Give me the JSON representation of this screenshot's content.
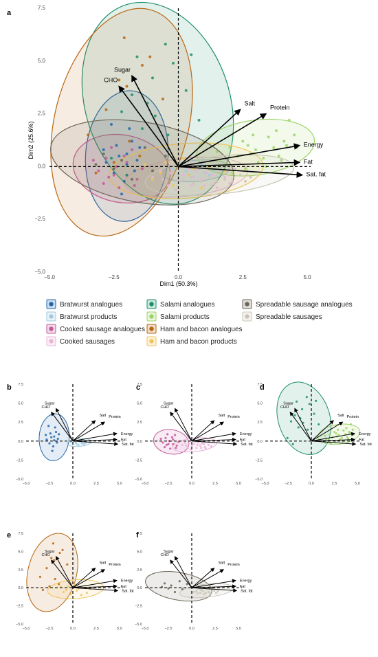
{
  "figure_labels": {
    "a": "a",
    "b": "b",
    "c": "c",
    "d": "d",
    "e": "e",
    "f": "f"
  },
  "colors": {
    "bratwurst_analogues": "#2166ac",
    "bratwurst_products": "#9ecae1",
    "cooked_sausage_analogues": "#c2579a",
    "cooked_sausages": "#e8b4d8",
    "salami_analogues": "#1b8f6a",
    "salami_products": "#9cd366",
    "ham_bacon_analogues": "#b8650f",
    "ham_bacon_products": "#f0c65a",
    "spreadable_analogues": "#6b6556",
    "spreadable_sausages": "#c9c5b5",
    "axis_line": "#000000"
  },
  "legend": [
    {
      "key": "bratwurst_analogues",
      "label": "Bratwurst analogues"
    },
    {
      "key": "bratwurst_products",
      "label": "Bratwurst products"
    },
    {
      "key": "cooked_sausage_analogues",
      "label": "Cooked sausage analogues"
    },
    {
      "key": "cooked_sausages",
      "label": "Cooked sausages"
    },
    {
      "key": "salami_analogues",
      "label": "Salami analogues"
    },
    {
      "key": "salami_products",
      "label": "Salami products"
    },
    {
      "key": "ham_bacon_analogues",
      "label": "Ham and bacon analogues"
    },
    {
      "key": "ham_bacon_products",
      "label": "Ham and bacon products"
    },
    {
      "key": "spreadable_analogues",
      "label": "Spreadable sausage analogues"
    },
    {
      "key": "spreadable_sausages",
      "label": "Spreadable sausages"
    }
  ],
  "chart_data": {
    "type": "scatter",
    "subtype": "PCA biplot",
    "xlabel": "Dim1 (50.3%)",
    "ylabel": "Dim2 (25.6%)",
    "xlim": [
      -5,
      5
    ],
    "ylim": [
      -5,
      7.5
    ],
    "x_ticks": [
      -5.0,
      -2.5,
      0.0,
      2.5,
      5.0
    ],
    "y_ticks": [
      -5.0,
      -2.5,
      0.0,
      2.5,
      5.0,
      7.5
    ],
    "tick_labels_x": [
      "−5.0",
      "−2.5",
      "0.0",
      "2.5",
      "5.0"
    ],
    "tick_labels_y": [
      "−5.0",
      "−2.5",
      "0.0",
      "2.5",
      "5.0",
      "7.5"
    ],
    "reference_lines": {
      "x": 0,
      "y": 0,
      "style": "dashed"
    },
    "loadings": [
      {
        "name": "Sugar",
        "x": -1.8,
        "y": 4.3
      },
      {
        "name": "CHO",
        "x": -2.3,
        "y": 3.8
      },
      {
        "name": "Salt",
        "x": 2.4,
        "y": 2.7
      },
      {
        "name": "Protein",
        "x": 3.4,
        "y": 2.5
      },
      {
        "name": "Energy",
        "x": 4.7,
        "y": 1.0
      },
      {
        "name": "Fat",
        "x": 4.7,
        "y": 0.2
      },
      {
        "name": "Sat. fat",
        "x": 4.8,
        "y": -0.4
      }
    ],
    "groups": {
      "bratwurst_analogues": {
        "ellipse": {
          "cx": -2.0,
          "cy": 0.5,
          "rx": 1.6,
          "ry": 3.1,
          "angle": 4
        },
        "points": [
          [
            -2.0,
            0.1
          ],
          [
            -2.3,
            0.5
          ],
          [
            -1.8,
            1.2
          ],
          [
            -2.5,
            -0.3
          ],
          [
            -1.5,
            0.9
          ],
          [
            -2.8,
            0.2
          ],
          [
            -2.1,
            -0.7
          ],
          [
            -1.9,
            1.8
          ],
          [
            -2.4,
            1.0
          ],
          [
            -1.7,
            -0.2
          ],
          [
            -2.6,
            2.0
          ],
          [
            -2.2,
            -1.3
          ],
          [
            -1.6,
            0.3
          ],
          [
            -2.9,
            0.8
          ],
          [
            -2.0,
            0.6
          ]
        ]
      },
      "bratwurst_products": {
        "ellipse": {
          "cx": 0.7,
          "cy": -0.2,
          "rx": 1.3,
          "ry": 0.5,
          "angle": -5
        },
        "points": [
          [
            0.3,
            -0.2
          ],
          [
            0.8,
            -0.1
          ],
          [
            1.2,
            -0.4
          ],
          [
            0.1,
            0.0
          ],
          [
            0.6,
            -0.5
          ],
          [
            1.4,
            -0.2
          ],
          [
            0.9,
            0.1
          ],
          [
            0.4,
            -0.4
          ],
          [
            1.0,
            -0.3
          ],
          [
            -0.2,
            -0.1
          ]
        ]
      },
      "cooked_sausage_analogues": {
        "ellipse": {
          "cx": -2.2,
          "cy": -0.1,
          "rx": 1.9,
          "ry": 1.6,
          "angle": 10
        },
        "points": [
          [
            -2.5,
            -0.4
          ],
          [
            -2.0,
            0.2
          ],
          [
            -1.6,
            -0.6
          ],
          [
            -2.8,
            0.4
          ],
          [
            -3.1,
            -0.2
          ],
          [
            -1.8,
            0.8
          ],
          [
            -2.3,
            -1.0
          ],
          [
            -2.6,
            0.9
          ],
          [
            -1.4,
            -0.1
          ],
          [
            -2.9,
            -0.8
          ],
          [
            -2.1,
            0.5
          ],
          [
            -3.3,
            0.3
          ],
          [
            -1.7,
            -0.9
          ],
          [
            -2.4,
            0.0
          ],
          [
            -2.0,
            -0.4
          ],
          [
            -2.7,
            -0.5
          ]
        ]
      },
      "cooked_sausages": {
        "ellipse": {
          "cx": 0.3,
          "cy": -0.5,
          "rx": 2.4,
          "ry": 0.9,
          "angle": -6
        },
        "points": [
          [
            0.2,
            -0.4
          ],
          [
            0.9,
            -0.6
          ],
          [
            -0.3,
            -0.3
          ],
          [
            1.4,
            -0.8
          ],
          [
            0.5,
            -0.9
          ],
          [
            -0.7,
            -0.2
          ],
          [
            1.1,
            -0.3
          ],
          [
            0.0,
            -0.7
          ],
          [
            1.8,
            -0.5
          ],
          [
            -0.4,
            -0.9
          ],
          [
            0.7,
            -0.2
          ],
          [
            1.5,
            -1.0
          ],
          [
            -1.0,
            -0.5
          ],
          [
            0.4,
            -0.1
          ],
          [
            2.1,
            -0.7
          ],
          [
            -0.1,
            -1.1
          ],
          [
            1.0,
            -0.9
          ],
          [
            0.6,
            -0.5
          ],
          [
            -0.6,
            -0.6
          ],
          [
            1.3,
            -0.4
          ]
        ]
      },
      "salami_analogues": {
        "ellipse": {
          "cx": -0.8,
          "cy": 3.0,
          "rx": 2.8,
          "ry": 4.9,
          "angle": -18
        },
        "points": [
          [
            -1.0,
            4.2
          ],
          [
            -1.8,
            3.4
          ],
          [
            -0.5,
            5.8
          ],
          [
            -2.2,
            2.6
          ],
          [
            -0.2,
            4.9
          ],
          [
            -1.4,
            1.8
          ],
          [
            0.3,
            3.6
          ],
          [
            -2.6,
            0.4
          ],
          [
            -0.9,
            2.4
          ],
          [
            -1.6,
            5.2
          ],
          [
            0.5,
            5.3
          ],
          [
            -0.4,
            1.5
          ],
          [
            -2.0,
            -0.4
          ],
          [
            -1.2,
            3.0
          ],
          [
            0.8,
            2.2
          ]
        ]
      },
      "salami_products": {
        "ellipse": {
          "cx": 3.0,
          "cy": 0.9,
          "rx": 2.3,
          "ry": 1.3,
          "angle": -8
        },
        "points": [
          [
            3.5,
            1.4
          ],
          [
            2.8,
            0.6
          ],
          [
            4.2,
            1.0
          ],
          [
            2.0,
            0.9
          ],
          [
            3.1,
            0.2
          ],
          [
            4.5,
            1.5
          ],
          [
            1.6,
            0.3
          ],
          [
            3.9,
            0.5
          ],
          [
            2.5,
            1.2
          ],
          [
            4.3,
            2.2
          ],
          [
            3.0,
            0.8
          ],
          [
            1.9,
            0.1
          ],
          [
            3.7,
            0.9
          ],
          [
            2.3,
            0.5
          ],
          [
            4.0,
            0.3
          ],
          [
            2.9,
            1.5
          ],
          [
            3.3,
            0.4
          ],
          [
            1.5,
            0.7
          ],
          [
            4.6,
            0.9
          ],
          [
            2.6,
            -0.1
          ],
          [
            3.8,
            1.7
          ],
          [
            2.1,
            -0.3
          ],
          [
            4.1,
            1.2
          ],
          [
            3.4,
            0.0
          ],
          [
            2.7,
            1.0
          ]
        ]
      },
      "ham_bacon_analogues": {
        "ellipse": {
          "cx": -2.2,
          "cy": 2.1,
          "rx": 2.6,
          "ry": 5.5,
          "angle": 14
        },
        "points": [
          [
            -2.0,
            3.8
          ],
          [
            -1.4,
            4.8
          ],
          [
            -3.5,
            1.5
          ],
          [
            -2.5,
            0.2
          ],
          [
            -1.1,
            5.2
          ],
          [
            -2.3,
            4.1
          ],
          [
            -3.2,
            -0.3
          ],
          [
            -1.9,
            1.2
          ],
          [
            -0.6,
            3.2
          ],
          [
            -2.8,
            2.7
          ],
          [
            -1.5,
            0.5
          ],
          [
            -2.1,
            6.1
          ]
        ]
      },
      "ham_bacon_products": {
        "ellipse": {
          "cx": 0.3,
          "cy": -0.2,
          "rx": 3.0,
          "ry": 1.3,
          "angle": -4
        },
        "points": [
          [
            -0.5,
            0.2
          ],
          [
            0.4,
            -0.4
          ],
          [
            1.2,
            0.0
          ],
          [
            -1.0,
            -0.6
          ],
          [
            0.9,
            -1.0
          ],
          [
            -0.2,
            -0.9
          ],
          [
            1.8,
            -0.2
          ],
          [
            0.2,
            0.4
          ],
          [
            -1.3,
            0.1
          ],
          [
            1.5,
            -0.7
          ],
          [
            0.6,
            -0.1
          ],
          [
            -0.7,
            -0.3
          ]
        ]
      },
      "spreadable_analogues": {
        "ellipse": {
          "cx": -1.4,
          "cy": 0.2,
          "rx": 3.6,
          "ry": 1.9,
          "angle": 10
        },
        "points": [
          [
            -2.2,
            0.3
          ],
          [
            -1.0,
            -0.2
          ],
          [
            -2.9,
            0.6
          ],
          [
            -0.5,
            0.5
          ],
          [
            -1.8,
            -0.6
          ],
          [
            -2.5,
            -0.1
          ],
          [
            -1.3,
            0.9
          ],
          [
            -3.2,
            0.1
          ]
        ]
      },
      "spreadable_sausages": {
        "ellipse": {
          "cx": 1.6,
          "cy": -0.4,
          "rx": 2.9,
          "ry": 0.9,
          "angle": -6
        },
        "points": [
          [
            1.0,
            -0.3
          ],
          [
            1.8,
            -0.6
          ],
          [
            0.5,
            -0.5
          ],
          [
            2.4,
            -0.4
          ],
          [
            1.3,
            -0.9
          ],
          [
            0.8,
            -0.1
          ],
          [
            2.0,
            -0.8
          ],
          [
            1.6,
            -0.2
          ],
          [
            0.2,
            -0.6
          ],
          [
            2.6,
            -0.7
          ],
          [
            1.2,
            -0.5
          ],
          [
            1.9,
            -0.2
          ],
          [
            0.6,
            -0.8
          ],
          [
            2.2,
            -0.1
          ],
          [
            1.5,
            -0.7
          ],
          [
            1.1,
            -0.1
          ],
          [
            2.8,
            -0.5
          ],
          [
            0.9,
            -0.7
          ]
        ]
      }
    },
    "panels": [
      {
        "id": "a",
        "groups": [
          "bratwurst_analogues",
          "bratwurst_products",
          "cooked_sausage_analogues",
          "cooked_sausages",
          "salami_analogues",
          "salami_products",
          "ham_bacon_analogues",
          "ham_bacon_products",
          "spreadable_analogues",
          "spreadable_sausages"
        ]
      },
      {
        "id": "b",
        "groups": [
          "bratwurst_analogues",
          "bratwurst_products"
        ]
      },
      {
        "id": "c",
        "groups": [
          "cooked_sausage_analogues",
          "cooked_sausages"
        ]
      },
      {
        "id": "d",
        "groups": [
          "salami_analogues",
          "salami_products"
        ]
      },
      {
        "id": "e",
        "groups": [
          "ham_bacon_analogues",
          "ham_bacon_products"
        ]
      },
      {
        "id": "f",
        "groups": [
          "spreadable_analogues",
          "spreadable_sausages"
        ]
      }
    ]
  }
}
